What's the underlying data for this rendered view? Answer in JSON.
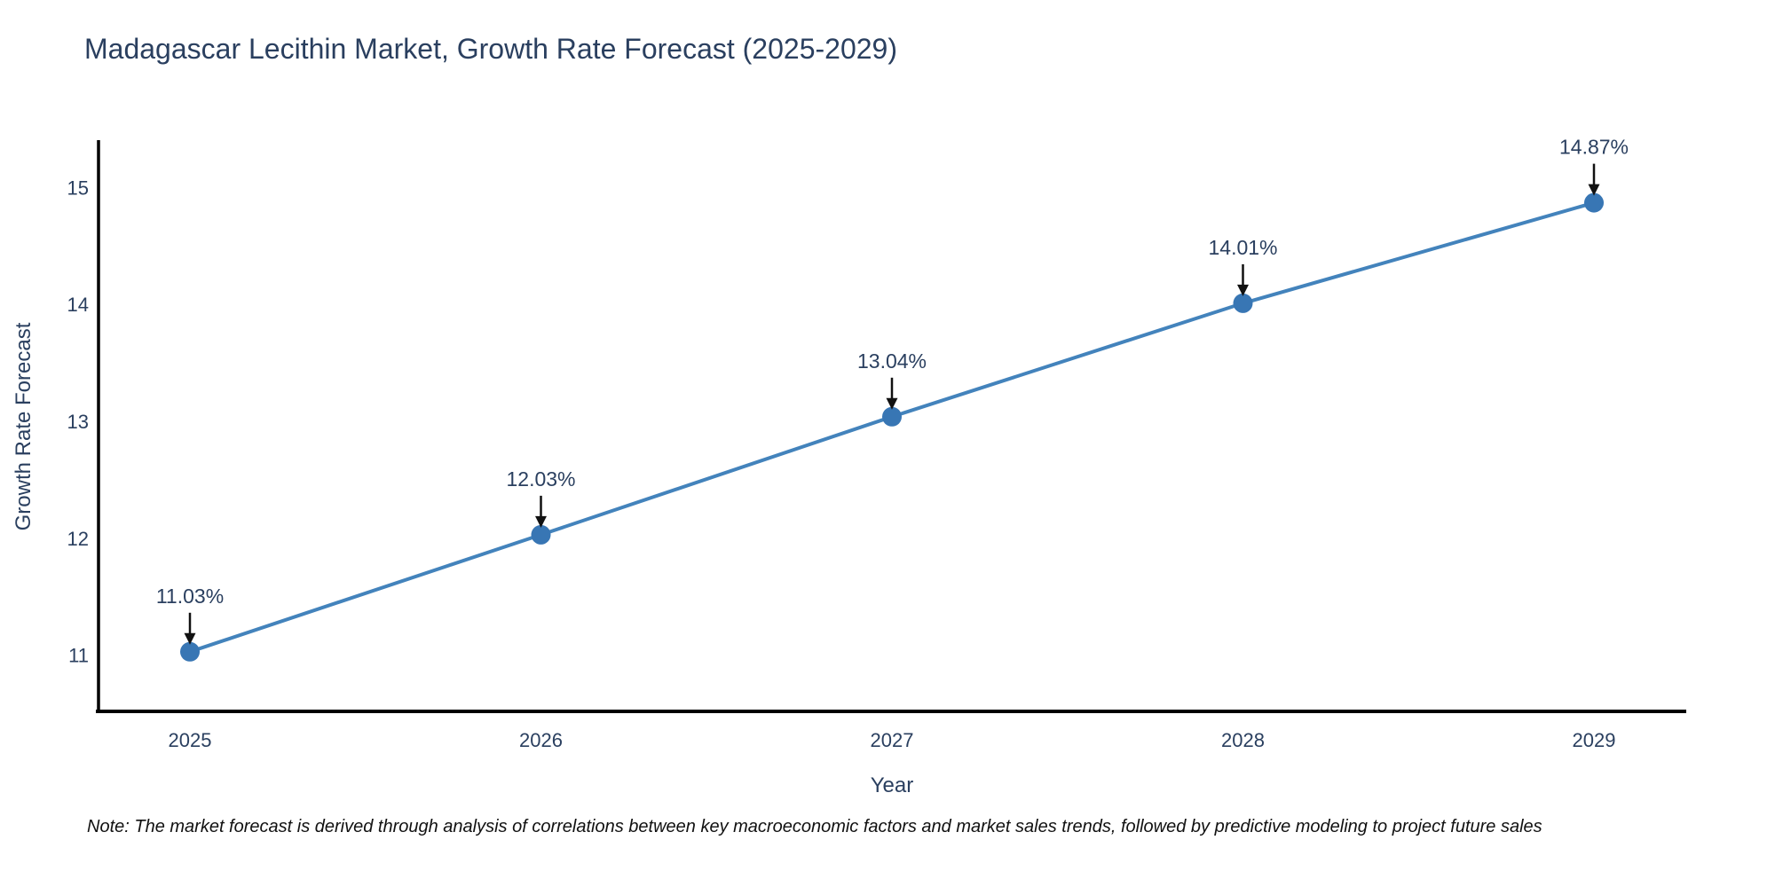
{
  "page": {
    "background": "#ffffff"
  },
  "note": "Note: The market forecast is derived through analysis of correlations between key macroeconomic factors and market sales trends, followed by predictive modeling to project future sales",
  "chart_data": {
    "type": "line",
    "title": "Madagascar Lecithin Market, Growth Rate Forecast (2025-2029)",
    "xlabel": "Year",
    "ylabel": "Growth Rate Forecast",
    "x": [
      "2025",
      "2026",
      "2027",
      "2028",
      "2029"
    ],
    "values": [
      11.03,
      12.03,
      13.04,
      14.01,
      14.87
    ],
    "point_labels": [
      "11.03%",
      "12.03%",
      "13.04%",
      "14.01%",
      "14.87%"
    ],
    "yticks": [
      11,
      12,
      13,
      14,
      15
    ],
    "ylim": [
      10.52,
      15.39
    ],
    "grid": false,
    "legend": "none",
    "marker": "circle-with-down-arrow-annotation",
    "colors": {
      "line": "#4383bc",
      "marker": "#3876b4",
      "axis": "#000000",
      "text": "#2a3f5f",
      "arrow": "#111111",
      "note_text": "#111111"
    }
  }
}
